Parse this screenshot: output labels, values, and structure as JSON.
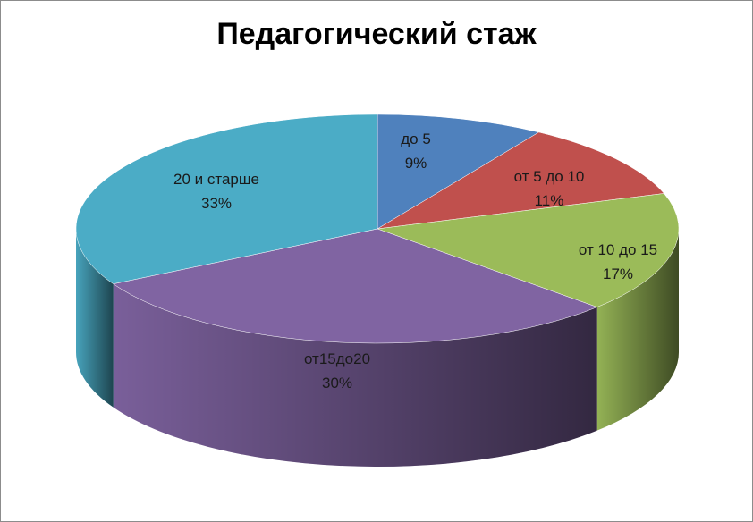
{
  "chart_data": {
    "type": "pie",
    "title": "Педагогический стаж",
    "slices": [
      {
        "label": "до 5",
        "value": 9,
        "value_label": "9%",
        "color": "#4F81BD"
      },
      {
        "label": "от 5 до 10",
        "value": 11,
        "value_label": "11%",
        "color": "#C0504D"
      },
      {
        "label": "от 10 до 15",
        "value": 17,
        "value_label": "17%",
        "color": "#9BBB59"
      },
      {
        "label": "от15до20",
        "value": 30,
        "value_label": "30%",
        "color": "#8064A2"
      },
      {
        "label": "20 и старше",
        "value": 33,
        "value_label": "33%",
        "color": "#4BACC6"
      }
    ],
    "style": "3d-pie",
    "legend": "none"
  }
}
